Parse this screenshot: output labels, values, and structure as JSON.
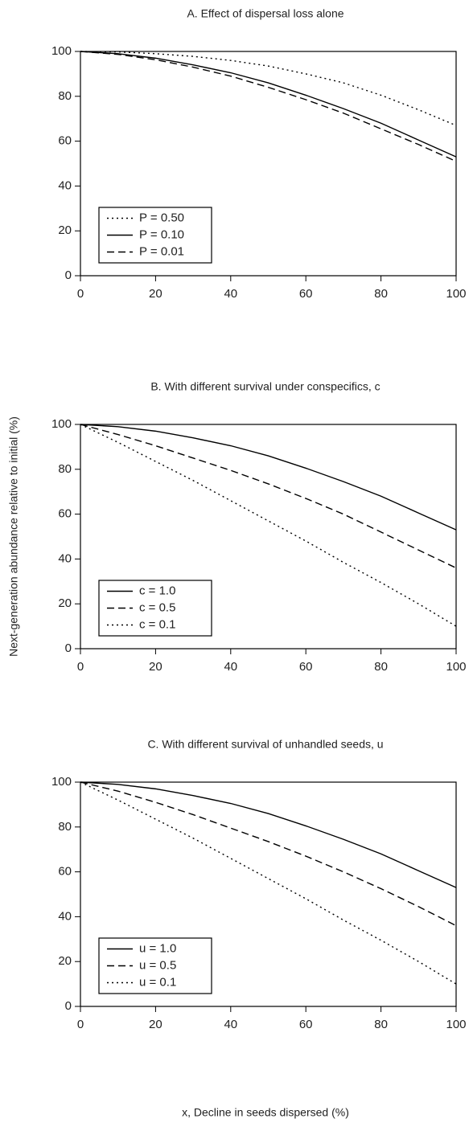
{
  "chart_data": [
    {
      "type": "line",
      "title": "A. Effect of dispersal loss alone",
      "x": [
        0,
        10,
        20,
        30,
        40,
        50,
        60,
        70,
        80,
        90,
        100
      ],
      "series": [
        {
          "name": "P = 0.50",
          "color": "#000000",
          "style": "dotted",
          "values": [
            100,
            99.8,
            99,
            97.8,
            96,
            93.5,
            90,
            86,
            80.5,
            74,
            67
          ]
        },
        {
          "name": "P = 0.10",
          "color": "#000000",
          "style": "solid",
          "values": [
            100,
            99,
            97,
            94,
            90.5,
            86,
            80.5,
            74.5,
            68,
            60.5,
            53
          ]
        },
        {
          "name": "P = 0.01",
          "color": "#000000",
          "style": "dashed",
          "values": [
            100,
            98.7,
            96.3,
            93,
            89,
            84,
            78.5,
            72.5,
            65.5,
            58.5,
            51
          ]
        }
      ],
      "xlim": [
        0,
        100
      ],
      "xticks": [
        0,
        20,
        40,
        60,
        80,
        100
      ],
      "ylim": [
        0,
        100
      ],
      "yticks": [
        0,
        20,
        40,
        60,
        80,
        100
      ],
      "legend": "lower left"
    },
    {
      "type": "line",
      "title": "B. With different survival under conspecifics, c",
      "ylabel": "Next-generation abundance relative to initial (%)",
      "x": [
        0,
        10,
        20,
        30,
        40,
        50,
        60,
        70,
        80,
        90,
        100
      ],
      "series": [
        {
          "name": "c = 1.0",
          "color": "#000000",
          "style": "solid",
          "values": [
            100,
            99,
            97,
            94,
            90.5,
            86,
            80.5,
            74.5,
            68,
            60.5,
            53
          ]
        },
        {
          "name": "c = 0.5",
          "color": "#000000",
          "style": "dashed",
          "values": [
            100,
            95.5,
            90.5,
            85,
            79.5,
            73.5,
            67,
            60,
            52,
            44,
            36
          ]
        },
        {
          "name": "c = 0.1",
          "color": "#000000",
          "style": "dotted",
          "values": [
            100,
            92,
            83.5,
            75,
            66,
            57,
            48,
            38.5,
            29.5,
            20,
            10
          ]
        }
      ],
      "xlim": [
        0,
        100
      ],
      "xticks": [
        0,
        20,
        40,
        60,
        80,
        100
      ],
      "ylim": [
        0,
        100
      ],
      "yticks": [
        0,
        20,
        40,
        60,
        80,
        100
      ],
      "legend": "lower left"
    },
    {
      "type": "line",
      "title": "C. With different survival of unhandled seeds, u",
      "xlabel": "x, Decline in seeds dispersed (%)",
      "x": [
        0,
        10,
        20,
        30,
        40,
        50,
        60,
        70,
        80,
        90,
        100
      ],
      "series": [
        {
          "name": "u = 1.0",
          "color": "#000000",
          "style": "solid",
          "values": [
            100,
            99,
            97,
            94,
            90.5,
            86,
            80.5,
            74.5,
            68,
            60.5,
            53
          ]
        },
        {
          "name": "u = 0.5",
          "color": "#000000",
          "style": "dashed",
          "values": [
            100,
            96,
            91,
            85.5,
            79.5,
            73.5,
            67,
            60,
            52.5,
            44.5,
            36
          ]
        },
        {
          "name": "u = 0.1",
          "color": "#000000",
          "style": "dotted",
          "values": [
            100,
            92,
            83.5,
            75,
            66,
            57,
            48,
            38.5,
            29.5,
            20,
            10
          ]
        }
      ],
      "xlim": [
        0,
        100
      ],
      "xticks": [
        0,
        20,
        40,
        60,
        80,
        100
      ],
      "ylim": [
        0,
        100
      ],
      "yticks": [
        0,
        20,
        40,
        60,
        80,
        100
      ],
      "legend": "lower left"
    }
  ]
}
